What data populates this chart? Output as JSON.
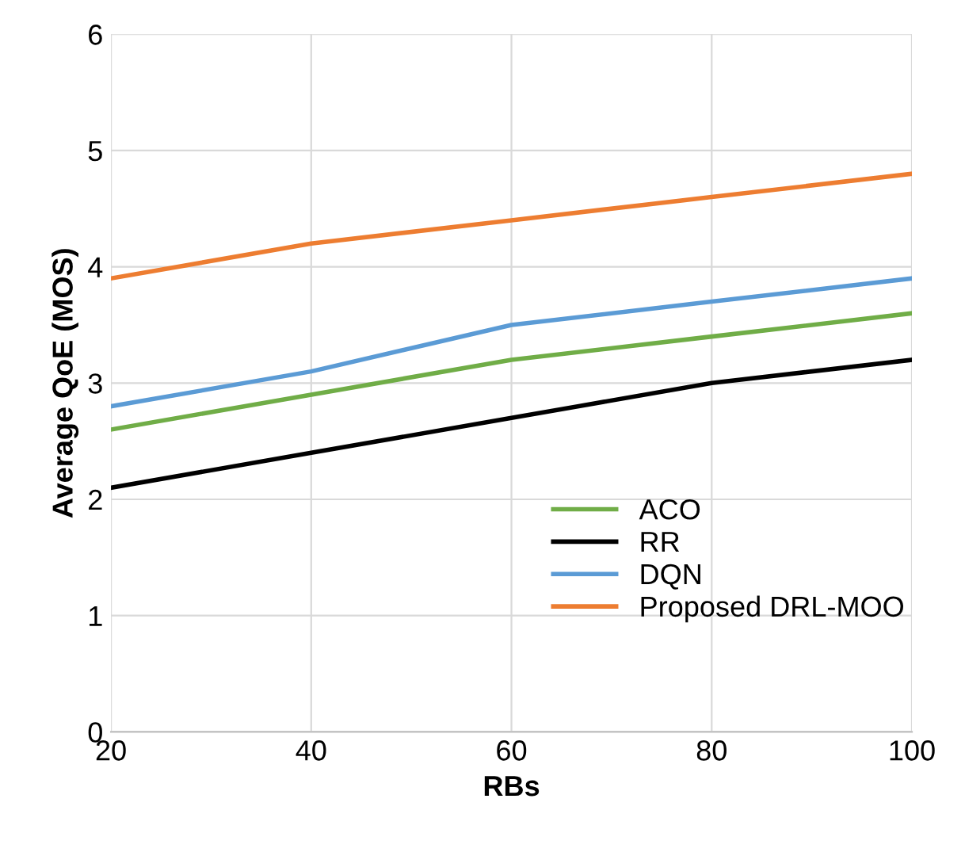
{
  "chart_data": {
    "type": "line",
    "xlabel": "RBs",
    "ylabel": "Average QoE (MOS)",
    "x": [
      20,
      40,
      60,
      80,
      100
    ],
    "series": [
      {
        "name": "ACO",
        "color": "#70ad47",
        "values": [
          2.6,
          2.9,
          3.2,
          3.4,
          3.6
        ]
      },
      {
        "name": "RR",
        "color": "#000000",
        "values": [
          2.1,
          2.4,
          2.7,
          3.0,
          3.2
        ]
      },
      {
        "name": "DQN",
        "color": "#5b9bd5",
        "values": [
          2.8,
          3.1,
          3.5,
          3.7,
          3.9
        ]
      },
      {
        "name": "Proposed DRL-MOO",
        "color": "#ed7d31",
        "values": [
          3.9,
          4.2,
          4.4,
          4.6,
          4.8
        ]
      }
    ],
    "xlim": [
      20,
      100
    ],
    "xticks": [
      20,
      40,
      60,
      80,
      100
    ],
    "ylim": [
      0,
      6
    ],
    "yticks": [
      0,
      1,
      2,
      3,
      4,
      5,
      6
    ],
    "grid": true,
    "legend": "bottom right",
    "marker": "none",
    "line_style": "solid"
  }
}
